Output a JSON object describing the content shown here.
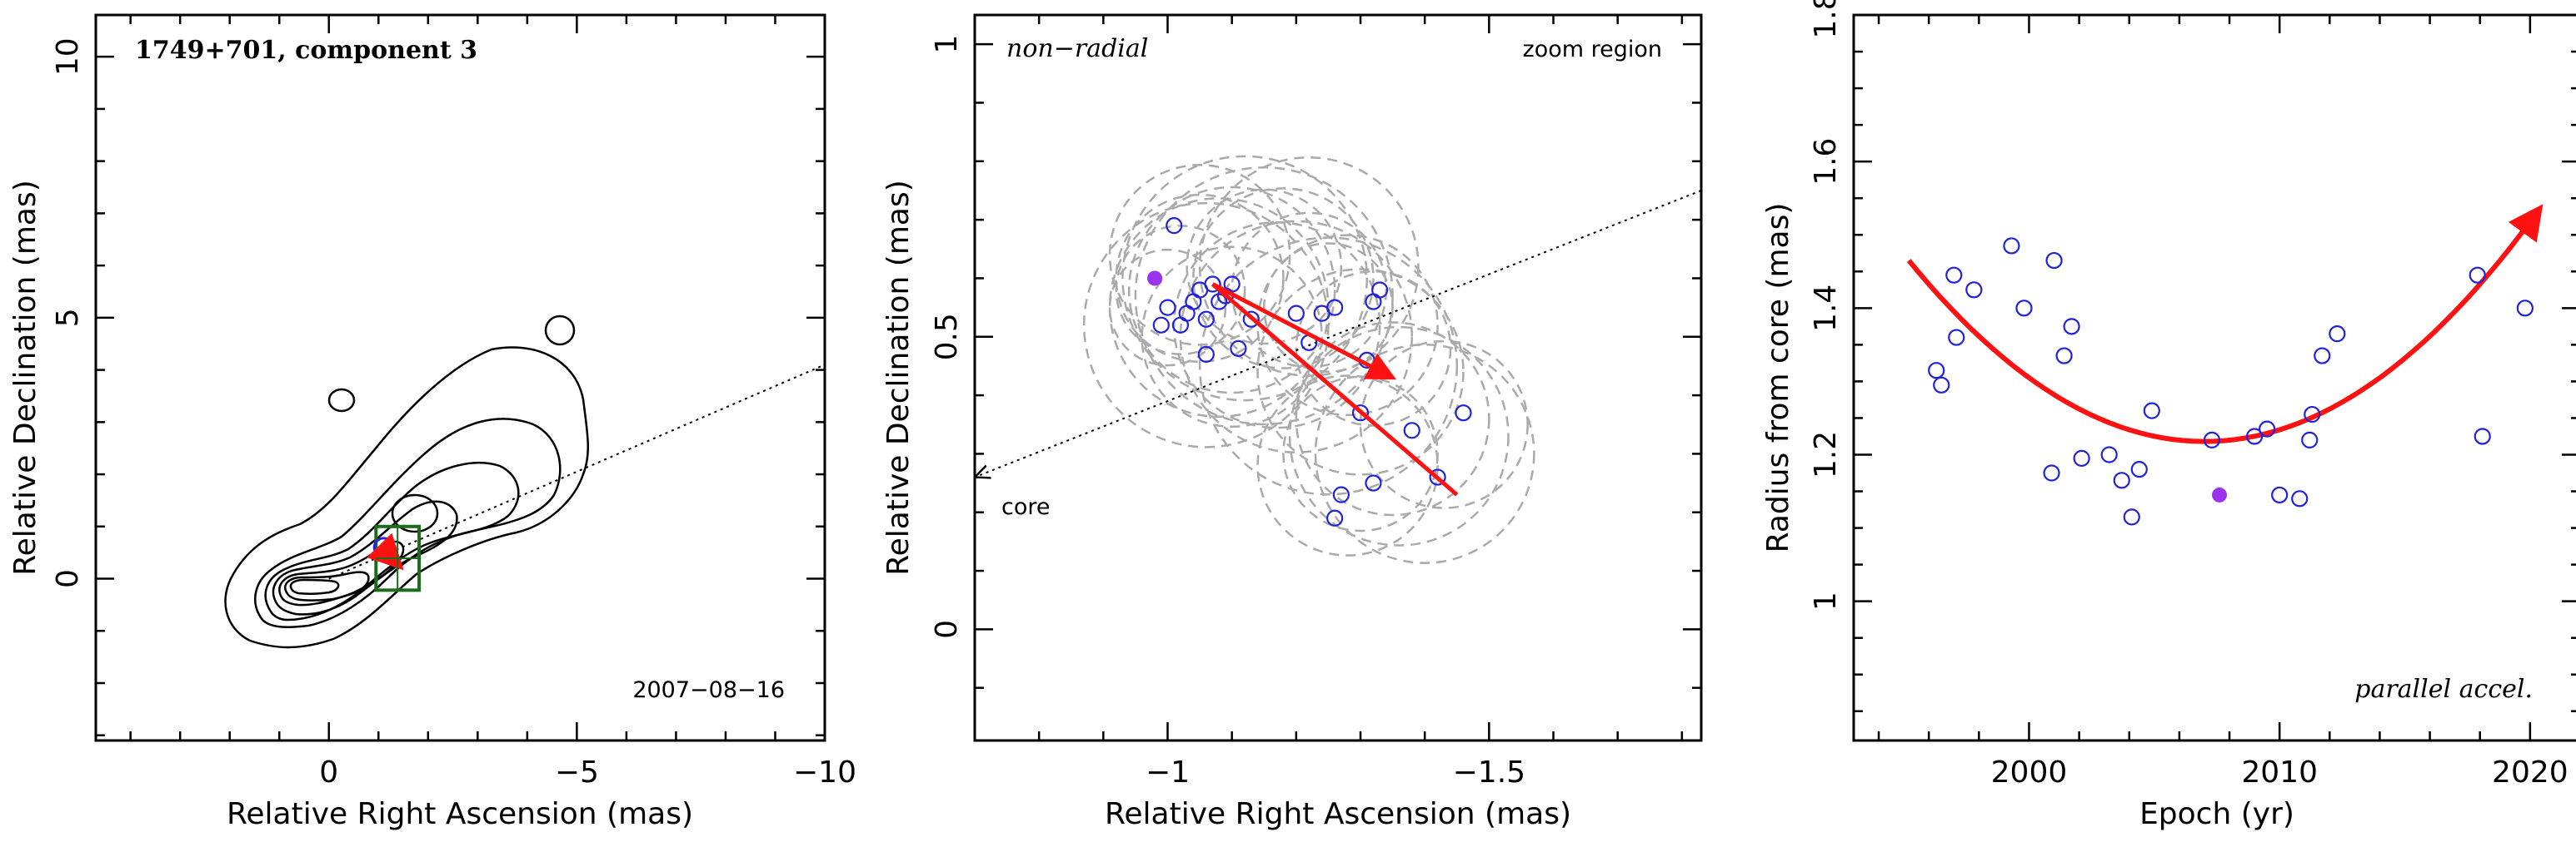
{
  "chart_data": [
    {
      "type": "contour",
      "panel": "left",
      "title": "1749+701, component 3",
      "date_label": "2007−08−16",
      "xlabel": "Relative Right Ascension (mas)",
      "ylabel": "Relative Declination (mas)",
      "xlim": [
        4.7,
        -10
      ],
      "ylim": [
        -3.1,
        10.8
      ],
      "xticks_major": [
        {
          "v": 0,
          "label": "0"
        },
        {
          "v": -5,
          "label": "−5"
        },
        {
          "v": -10,
          "label": "−10"
        }
      ],
      "yticks_major": [
        {
          "v": 0,
          "label": "0"
        },
        {
          "v": 5,
          "label": "5"
        },
        {
          "v": 10,
          "label": "10"
        }
      ],
      "xminor_step": 1,
      "yminor_step": 1,
      "core": [
        0,
        0
      ],
      "position_angle_line": {
        "from": [
          0,
          0
        ],
        "to": [
          -10,
          4.1
        ]
      },
      "zoom_box": {
        "x": [
          -0.95,
          -1.82
        ],
        "y": [
          -0.22,
          1.0
        ]
      },
      "component_marker": [
        -1.1,
        0.6
      ],
      "motion_arrow": {
        "from": [
          -1.08,
          0.58
        ],
        "to": [
          -1.44,
          0.23
        ]
      },
      "colors": {
        "zoom_box": "#1a6b1a",
        "marker": "#2222dd",
        "arrow": "#ff1111"
      }
    },
    {
      "type": "scatter",
      "panel": "middle",
      "annotation_left": "non−radial",
      "annotation_right": "zoom region",
      "core_label": "core",
      "xlabel": "Relative Right Ascension (mas)",
      "ylabel": "Relative Declination (mas)",
      "xlim": [
        -0.7,
        -1.83
      ],
      "ylim": [
        -0.19,
        1.05
      ],
      "xticks_major": [
        {
          "v": -1,
          "label": "−1"
        },
        {
          "v": -1.5,
          "label": "−1.5"
        }
      ],
      "yticks_major": [
        {
          "v": 0,
          "label": "0"
        },
        {
          "v": 0.5,
          "label": "0.5"
        },
        {
          "v": 1,
          "label": "1"
        }
      ],
      "xminor_step": 0.1,
      "yminor_step": 0.1,
      "points": [
        [
          -1.01,
          0.69
        ],
        [
          -0.99,
          0.52
        ],
        [
          -1.0,
          0.55
        ],
        [
          -1.02,
          0.52
        ],
        [
          -1.03,
          0.54
        ],
        [
          -1.04,
          0.56
        ],
        [
          -1.05,
          0.58
        ],
        [
          -1.06,
          0.53
        ],
        [
          -1.06,
          0.47
        ],
        [
          -1.07,
          0.59
        ],
        [
          -1.08,
          0.56
        ],
        [
          -1.09,
          0.57
        ],
        [
          -1.1,
          0.59
        ],
        [
          -1.11,
          0.48
        ],
        [
          -1.13,
          0.53
        ],
        [
          -1.2,
          0.54
        ],
        [
          -1.22,
          0.49
        ],
        [
          -1.24,
          0.54
        ],
        [
          -1.26,
          0.55
        ],
        [
          -1.31,
          0.46
        ],
        [
          -1.32,
          0.56
        ],
        [
          -1.33,
          0.58
        ],
        [
          -1.3,
          0.37
        ],
        [
          -1.38,
          0.34
        ],
        [
          -1.42,
          0.26
        ],
        [
          -1.46,
          0.37
        ],
        [
          -1.32,
          0.25
        ],
        [
          -1.27,
          0.23
        ],
        [
          -1.26,
          0.19
        ]
      ],
      "highlight_point": [
        -0.98,
        0.6
      ],
      "error_circles": [
        [
          -1.02,
          0.58,
          0.1
        ],
        [
          -1.05,
          0.6,
          0.13
        ],
        [
          -1.1,
          0.58,
          0.16
        ],
        [
          -1.15,
          0.57,
          0.2
        ],
        [
          -1.0,
          0.55,
          0.09
        ],
        [
          -1.08,
          0.55,
          0.17
        ],
        [
          -1.12,
          0.6,
          0.19
        ],
        [
          -1.18,
          0.6,
          0.14
        ],
        [
          -1.22,
          0.58,
          0.12
        ],
        [
          -1.25,
          0.55,
          0.1
        ],
        [
          -1.1,
          0.5,
          0.14
        ],
        [
          -1.06,
          0.52,
          0.19
        ],
        [
          -1.15,
          0.62,
          0.12
        ],
        [
          -1.2,
          0.5,
          0.18
        ],
        [
          -1.28,
          0.52,
          0.14
        ],
        [
          -1.32,
          0.48,
          0.12
        ],
        [
          -1.3,
          0.44,
          0.16
        ],
        [
          -1.35,
          0.36,
          0.15
        ],
        [
          -1.36,
          0.33,
          0.17
        ],
        [
          -1.4,
          0.3,
          0.17
        ],
        [
          -1.43,
          0.35,
          0.13
        ],
        [
          -1.3,
          0.3,
          0.12
        ],
        [
          -1.28,
          0.28,
          0.14
        ],
        [
          -1.25,
          0.45,
          0.2
        ],
        [
          -1.17,
          0.52,
          0.16
        ],
        [
          -1.22,
          0.62,
          0.17
        ],
        [
          -1.05,
          0.64,
          0.14
        ]
      ],
      "position_angle_line": {
        "from": [
          -1.83,
          0.75
        ],
        "to": [
          -0.7,
          0.26
        ]
      },
      "motion_arrows": [
        {
          "from": [
            -1.07,
            0.59
          ],
          "to": [
            -1.45,
            0.23
          ]
        },
        {
          "from": [
            -1.07,
            0.59
          ],
          "to": [
            -1.35,
            0.43
          ]
        }
      ],
      "colors": {
        "points": "#2222dd",
        "highlight": "#9933ee",
        "arrow": "#ff1111",
        "circles": "#aaaaaa"
      }
    },
    {
      "type": "scatter",
      "panel": "right",
      "annotation": "parallel accel.",
      "xlabel": "Epoch (yr)",
      "ylabel": "Radius from core (mas)",
      "xlim": [
        1993,
        2022
      ],
      "ylim": [
        0.81,
        1.8
      ],
      "xticks_major": [
        {
          "v": 2000,
          "label": "2000"
        },
        {
          "v": 2010,
          "label": "2010"
        },
        {
          "v": 2020,
          "label": "2020"
        }
      ],
      "yticks_major": [
        {
          "v": 1.0,
          "label": "1"
        },
        {
          "v": 1.2,
          "label": "1.2"
        },
        {
          "v": 1.4,
          "label": "1.4"
        },
        {
          "v": 1.6,
          "label": "1.6"
        },
        {
          "v": 1.8,
          "label": "1.8"
        }
      ],
      "xminor_step": 2,
      "yminor_step": 0.05,
      "points": [
        [
          1996.3,
          1.315
        ],
        [
          1996.5,
          1.295
        ],
        [
          1997.0,
          1.445
        ],
        [
          1997.1,
          1.36
        ],
        [
          1997.8,
          1.425
        ],
        [
          1999.3,
          1.485
        ],
        [
          1999.8,
          1.4
        ],
        [
          2001.0,
          1.465
        ],
        [
          2001.4,
          1.335
        ],
        [
          2001.7,
          1.375
        ],
        [
          2000.9,
          1.175
        ],
        [
          2002.1,
          1.195
        ],
        [
          2003.2,
          1.2
        ],
        [
          2003.7,
          1.165
        ],
        [
          2004.1,
          1.115
        ],
        [
          2004.4,
          1.18
        ],
        [
          2004.9,
          1.26
        ],
        [
          2007.3,
          1.22
        ],
        [
          2009.0,
          1.225
        ],
        [
          2009.5,
          1.235
        ],
        [
          2010.0,
          1.145
        ],
        [
          2010.8,
          1.14
        ],
        [
          2011.2,
          1.22
        ],
        [
          2011.3,
          1.255
        ],
        [
          2011.7,
          1.335
        ],
        [
          2012.3,
          1.365
        ],
        [
          2017.9,
          1.445
        ],
        [
          2018.1,
          1.225
        ],
        [
          2019.8,
          1.4
        ]
      ],
      "highlight_point": [
        2007.6,
        1.145
      ],
      "fit_curve": {
        "from_x": 1995.2,
        "to_x": 2020.4,
        "vertex_x": 2007.0,
        "vertex_y": 1.218,
        "y_at_start": 1.465
      },
      "colors": {
        "points": "#2222dd",
        "highlight": "#9933ee",
        "fit": "#ff1111"
      }
    }
  ]
}
